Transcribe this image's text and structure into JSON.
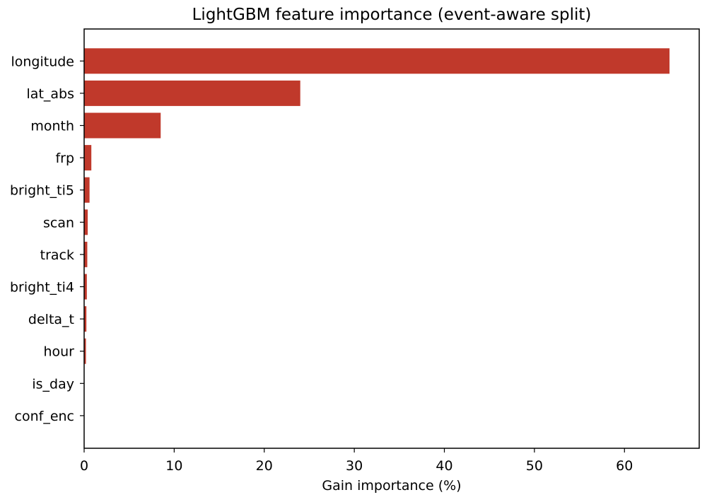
{
  "chart_data": {
    "type": "bar",
    "orientation": "horizontal",
    "title": "LightGBM feature importance (event-aware split)",
    "xlabel": "Gain importance (%)",
    "ylabel": "",
    "xlim": [
      0,
      68.3
    ],
    "xticks": [
      0,
      10,
      20,
      30,
      40,
      50,
      60
    ],
    "xtick_labels": [
      "0",
      "10",
      "20",
      "30",
      "40",
      "50",
      "60"
    ],
    "categories": [
      "longitude",
      "lat_abs",
      "month",
      "frp",
      "bright_ti5",
      "scan",
      "track",
      "bright_ti4",
      "delta_t",
      "hour",
      "is_day",
      "conf_enc"
    ],
    "values": [
      65.0,
      24.0,
      8.5,
      0.8,
      0.6,
      0.4,
      0.35,
      0.3,
      0.25,
      0.2,
      0.02,
      0.01
    ],
    "bar_color": "#c0392b",
    "grid": false,
    "legend": "none"
  }
}
